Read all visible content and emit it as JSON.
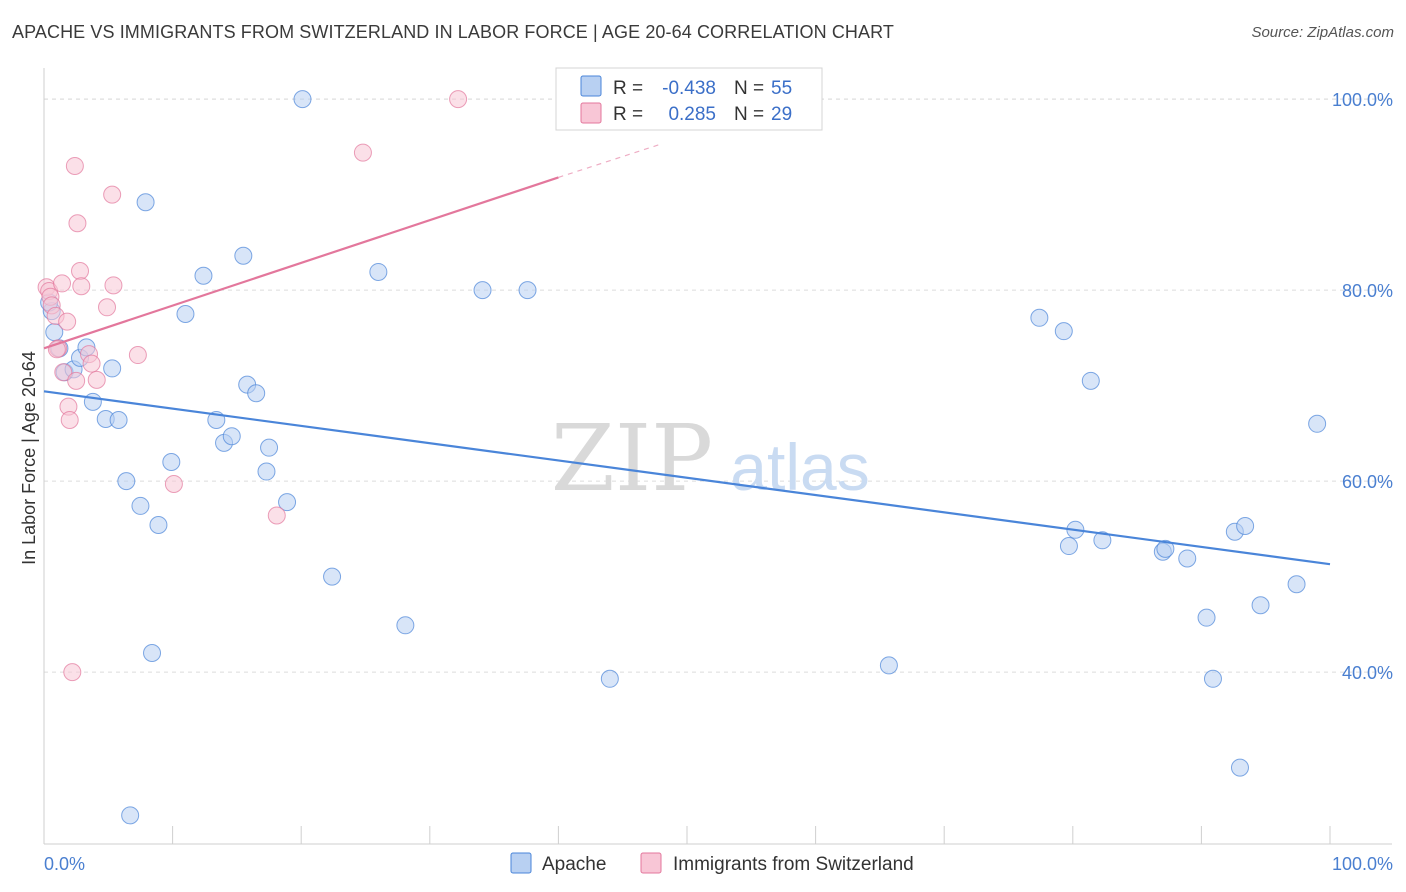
{
  "header": {
    "title": "APACHE VS IMMIGRANTS FROM SWITZERLAND IN LABOR FORCE | AGE 20-64 CORRELATION CHART",
    "source": "Source: ZipAtlas.com"
  },
  "watermark": {
    "zip": "ZIP",
    "atlas": "atlas"
  },
  "chart_data": {
    "type": "scatter",
    "title": "APACHE VS IMMIGRANTS FROM SWITZERLAND IN LABOR FORCE | AGE 20-64 CORRELATION CHART",
    "xlabel": "",
    "ylabel": "In Labor Force | Age 20-64",
    "xlim": [
      0,
      100
    ],
    "ylim": [
      22,
      102
    ],
    "x_tick_labels": [
      {
        "value": 0,
        "label": "0.0%"
      },
      {
        "value": 100,
        "label": "100.0%"
      }
    ],
    "y_tick_labels": [
      {
        "value": 40,
        "label": "40.0%"
      },
      {
        "value": 60,
        "label": "60.0%"
      },
      {
        "value": 80,
        "label": "80.0%"
      },
      {
        "value": 100,
        "label": "100.0%"
      }
    ],
    "grid": true,
    "legend_position": "top-center",
    "stats": [
      {
        "series": "Apache",
        "r_label": "R =",
        "r_value": "-0.438",
        "n_label": "N =",
        "n_value": "55"
      },
      {
        "series": "Immigrants from Switzerland",
        "r_label": "R =",
        "r_value": "0.285",
        "n_label": "N =",
        "n_value": "29"
      }
    ],
    "series": [
      {
        "name": "Apache",
        "color": "#4a85d9",
        "fill": "#b8d0f2",
        "trend": {
          "x0": 0,
          "y0": 69.4,
          "x1": 100,
          "y1": 51.3
        },
        "points": [
          [
            0.6,
            77.8
          ],
          [
            0.8,
            75.6
          ],
          [
            1.2,
            73.9
          ],
          [
            1.6,
            71.4
          ],
          [
            2.3,
            71.7
          ],
          [
            2.8,
            72.9
          ],
          [
            3.3,
            74.0
          ],
          [
            3.8,
            68.3
          ],
          [
            4.8,
            66.5
          ],
          [
            5.3,
            71.8
          ],
          [
            5.8,
            66.4
          ],
          [
            6.4,
            60.0
          ],
          [
            7.5,
            57.4
          ],
          [
            7.9,
            89.2
          ],
          [
            8.4,
            42.0
          ],
          [
            8.9,
            55.4
          ],
          [
            9.9,
            62.0
          ],
          [
            11.0,
            77.5
          ],
          [
            12.4,
            81.5
          ],
          [
            13.4,
            66.4
          ],
          [
            14.0,
            64.0
          ],
          [
            14.6,
            64.7
          ],
          [
            15.5,
            83.6
          ],
          [
            15.8,
            70.1
          ],
          [
            16.5,
            69.2
          ],
          [
            17.3,
            61.0
          ],
          [
            17.5,
            63.5
          ],
          [
            18.9,
            57.8
          ],
          [
            20.1,
            100.0
          ],
          [
            22.4,
            50.0
          ],
          [
            26.0,
            81.9
          ],
          [
            28.1,
            44.9
          ],
          [
            34.1,
            80.0
          ],
          [
            37.6,
            80.0
          ],
          [
            44.0,
            39.3
          ],
          [
            6.7,
            25.0
          ],
          [
            65.7,
            40.7
          ],
          [
            77.4,
            77.1
          ],
          [
            79.3,
            75.7
          ],
          [
            80.2,
            54.9
          ],
          [
            81.4,
            70.5
          ],
          [
            79.7,
            53.2
          ],
          [
            82.3,
            53.8
          ],
          [
            87.0,
            52.6
          ],
          [
            87.2,
            52.9
          ],
          [
            88.9,
            51.9
          ],
          [
            90.4,
            45.7
          ],
          [
            90.9,
            39.3
          ],
          [
            92.6,
            54.7
          ],
          [
            93.0,
            30.0
          ],
          [
            93.4,
            55.3
          ],
          [
            94.6,
            47.0
          ],
          [
            97.4,
            49.2
          ],
          [
            99.0,
            66.0
          ],
          [
            0.4,
            78.7
          ]
        ]
      },
      {
        "name": "Immigrants from Switzerland",
        "color": "#e3779c",
        "fill": "#f8c6d6",
        "trend": {
          "x0": 0,
          "y0": 73.9,
          "x1": 40,
          "y1": 91.8,
          "dash_x1": 48,
          "dash_y1": 95.3
        },
        "points": [
          [
            0.2,
            80.3
          ],
          [
            0.4,
            79.9
          ],
          [
            0.5,
            79.3
          ],
          [
            0.6,
            78.4
          ],
          [
            0.9,
            77.3
          ],
          [
            1.1,
            73.9
          ],
          [
            1.4,
            80.7
          ],
          [
            1.5,
            71.4
          ],
          [
            1.8,
            76.7
          ],
          [
            1.9,
            67.8
          ],
          [
            2.0,
            66.4
          ],
          [
            2.2,
            40.0
          ],
          [
            2.4,
            93.0
          ],
          [
            2.5,
            70.5
          ],
          [
            2.6,
            87.0
          ],
          [
            2.8,
            82.0
          ],
          [
            2.9,
            80.4
          ],
          [
            3.5,
            73.3
          ],
          [
            3.7,
            72.3
          ],
          [
            4.1,
            70.6
          ],
          [
            4.9,
            78.2
          ],
          [
            5.3,
            90.0
          ],
          [
            5.4,
            80.5
          ],
          [
            7.3,
            73.2
          ],
          [
            10.1,
            59.7
          ],
          [
            18.1,
            56.4
          ],
          [
            24.8,
            94.4
          ],
          [
            32.2,
            100.0
          ],
          [
            1.0,
            73.8
          ]
        ]
      }
    ]
  }
}
